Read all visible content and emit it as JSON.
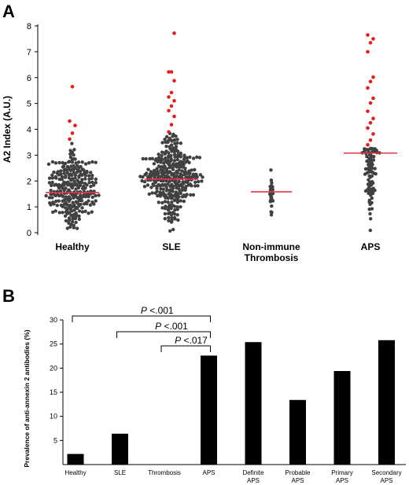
{
  "panel_a_label": "A",
  "panel_b_label": "B",
  "chart_data": [
    {
      "type": "scatter",
      "title": "",
      "ylabel": "A2 Index (A.U.)",
      "xlabel": "",
      "ylim": [
        0,
        8
      ],
      "yticks": [
        "0",
        "1",
        "2",
        "3",
        "4",
        "5",
        "6",
        "7",
        "8"
      ],
      "grid": false,
      "marker_colors": {
        "normal": "#404040",
        "elevated": "#e0201e",
        "median_line": "#e8304a"
      },
      "groups": [
        {
          "category": [
            "Healthy"
          ],
          "median": 1.55,
          "n_points": 260,
          "spread": 44,
          "elevated_values": [
            3.62,
            3.85,
            4.15,
            4.32,
            5.65
          ]
        },
        {
          "category": [
            "SLE"
          ],
          "median": 2.07,
          "n_points": 320,
          "spread": 42,
          "elevated_values": [
            3.9,
            4.18,
            4.5,
            4.72,
            4.9,
            5.1,
            5.25,
            5.42,
            5.88,
            6.22,
            6.22,
            7.72
          ]
        },
        {
          "category": [
            "Non-immune",
            "Thrombosis"
          ],
          "median": 1.58,
          "n_points": 30,
          "spread": 12,
          "elevated_values": []
        },
        {
          "category": [
            "APS"
          ],
          "median": 3.08,
          "n_points": 80,
          "spread": 28,
          "elevated_values": [
            3.4,
            3.58,
            3.82,
            4.05,
            4.25,
            4.42,
            4.7,
            5.02,
            5.2,
            5.6,
            5.85,
            6.02,
            7.0,
            7.35,
            7.5,
            7.65
          ]
        }
      ]
    },
    {
      "type": "bar",
      "title": "",
      "ylabel": "Prevalence of anti-annexin 2 antibodies (%)",
      "xlabel": "",
      "ylim": [
        0,
        30
      ],
      "yticks": [
        "5",
        "10",
        "15",
        "20",
        "25",
        "30"
      ],
      "grid": false,
      "bar_color": "#000000",
      "categories": [
        [
          "Healthy"
        ],
        [
          "SLE"
        ],
        [
          "Thrombosis"
        ],
        [
          "APS"
        ],
        [
          "Definite",
          "APS"
        ],
        [
          "Probable",
          "APS"
        ],
        [
          "Primary",
          "APS"
        ],
        [
          "Secondary",
          "APS"
        ]
      ],
      "values": [
        2.2,
        6.4,
        0,
        22.6,
        25.4,
        13.4,
        19.4,
        25.8
      ],
      "annotations": [
        {
          "from": 0,
          "to": 3,
          "p_letter": "P",
          "p_rest": " <.001"
        },
        {
          "from": 1,
          "to": 3,
          "p_letter": "P",
          "p_rest": " <.001"
        },
        {
          "from": 2,
          "to": 3,
          "p_letter": "P",
          "p_rest": " <.017"
        }
      ]
    }
  ]
}
